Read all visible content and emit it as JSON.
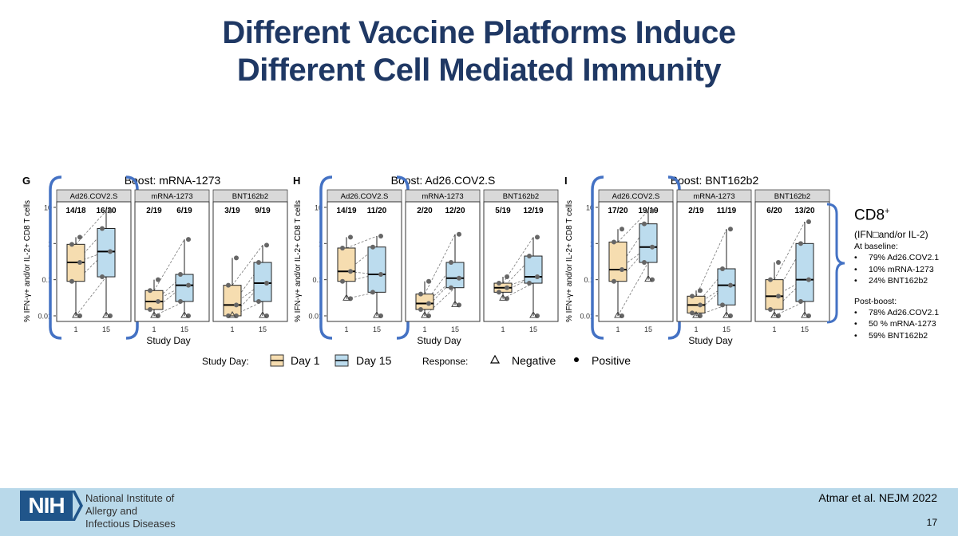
{
  "slide": {
    "title_line1": "Different Vaccine Platforms Induce",
    "title_line2": "Different Cell Mediated Immunity",
    "page_number": "17",
    "citation": "Atmar et al.  NEJM 2022"
  },
  "branding": {
    "logo_text": "NIH",
    "org_line1": "National Institute of",
    "org_line2": "Allergy and",
    "org_line3": "Infectious Diseases"
  },
  "colors": {
    "title": "#1f3864",
    "bracket": "#4472c4",
    "day1_fill": "#f6ddb0",
    "day15_fill": "#bcdcee",
    "facet_strip": "#d9d9d9",
    "point": "#666666",
    "footer_bg": "#b9d9ea",
    "logo_bg": "#20558a"
  },
  "sidebar": {
    "cd8_label": "CD8",
    "cd8_sup": "+",
    "subtitle": "(IFN□and/or IL-2)",
    "baseline_header": "At baseline:",
    "baseline_items": [
      "79% Ad26.COV2.1",
      "10% mRNA-1273",
      "24% BNT162b2"
    ],
    "postboost_header": "Post-boost:",
    "postboost_items": [
      "78% Ad26.COV2.1",
      "50 % mRNA-1273",
      "59% BNT162b2"
    ]
  },
  "chart_data": [
    {
      "type": "box",
      "panel_letter": "G",
      "title": "Boost: mRNA-1273",
      "ylabel": "% IFN-γ+ and/or IL-2+ CD8 T cells",
      "xlabel": "Study Day",
      "yscale": "log",
      "ylim": [
        0.007,
        15
      ],
      "yticks": [
        {
          "v": 10,
          "label": "10"
        },
        {
          "v": 1,
          "label": "1"
        },
        {
          "v": 0.1,
          "label": "0.1"
        },
        {
          "v": 0.01,
          "label": "0.01"
        }
      ],
      "xticks": [
        "1",
        "15"
      ],
      "facets": [
        {
          "strip": "Ad26.COV2.S",
          "counts": [
            "14/18",
            "16/20"
          ],
          "highlight": true,
          "boxes": [
            {
              "q1": 0.09,
              "med": 0.3,
              "q3": 0.95,
              "lo": 0.01,
              "hi": 1.5
            },
            {
              "q1": 0.12,
              "med": 0.6,
              "q3": 2.6,
              "lo": 0.01,
              "hi": 8
            }
          ]
        },
        {
          "strip": "mRNA-1273",
          "counts": [
            "2/19",
            "6/19"
          ],
          "highlight": false,
          "boxes": [
            {
              "q1": 0.015,
              "med": 0.025,
              "q3": 0.05,
              "lo": 0.01,
              "hi": 0.1
            },
            {
              "q1": 0.025,
              "med": 0.07,
              "q3": 0.14,
              "lo": 0.01,
              "hi": 1.3
            }
          ]
        },
        {
          "strip": "BNT162b2",
          "counts": [
            "3/19",
            "9/19"
          ],
          "highlight": false,
          "boxes": [
            {
              "q1": 0.01,
              "med": 0.02,
              "q3": 0.07,
              "lo": 0.01,
              "hi": 0.4
            },
            {
              "q1": 0.025,
              "med": 0.08,
              "q3": 0.3,
              "lo": 0.01,
              "hi": 0.9
            }
          ]
        }
      ]
    },
    {
      "type": "box",
      "panel_letter": "H",
      "title": "Boost: Ad26.COV2.S",
      "ylabel": "% IFN-γ+ and/or IL-2+ CD8 T cells",
      "xlabel": "Study Day",
      "yscale": "log",
      "ylim": [
        0.007,
        15
      ],
      "yticks": [
        {
          "v": 10,
          "label": "10"
        },
        {
          "v": 1,
          "label": "1"
        },
        {
          "v": 0.1,
          "label": "0.1"
        },
        {
          "v": 0.01,
          "label": "0.01"
        }
      ],
      "xticks": [
        "1",
        "15"
      ],
      "facets": [
        {
          "strip": "Ad26.COV2.S",
          "counts": [
            "14/19",
            "11/20"
          ],
          "highlight": true,
          "boxes": [
            {
              "q1": 0.09,
              "med": 0.17,
              "q3": 0.75,
              "lo": 0.03,
              "hi": 1.5
            },
            {
              "q1": 0.045,
              "med": 0.14,
              "q3": 0.8,
              "lo": 0.01,
              "hi": 1.6
            }
          ]
        },
        {
          "strip": "mRNA-1273",
          "counts": [
            "2/20",
            "12/20"
          ],
          "highlight": false,
          "boxes": [
            {
              "q1": 0.015,
              "med": 0.022,
              "q3": 0.04,
              "lo": 0.01,
              "hi": 0.09
            },
            {
              "q1": 0.06,
              "med": 0.11,
              "q3": 0.3,
              "lo": 0.02,
              "hi": 1.8
            }
          ]
        },
        {
          "strip": "BNT162b2",
          "counts": [
            "5/19",
            "12/19"
          ],
          "highlight": false,
          "boxes": [
            {
              "q1": 0.045,
              "med": 0.06,
              "q3": 0.08,
              "lo": 0.03,
              "hi": 0.12
            },
            {
              "q1": 0.08,
              "med": 0.12,
              "q3": 0.45,
              "lo": 0.01,
              "hi": 1.5
            }
          ]
        }
      ]
    },
    {
      "type": "box",
      "panel_letter": "I",
      "title": "Boost: BNT162b2",
      "ylabel": "% IFN-γ+ and/or IL-2+ CD8 T cells",
      "xlabel": "Study Day",
      "yscale": "log",
      "ylim": [
        0.007,
        15
      ],
      "yticks": [
        {
          "v": 10,
          "label": "10"
        },
        {
          "v": 1,
          "label": "1"
        },
        {
          "v": 0.1,
          "label": "0.1"
        },
        {
          "v": 0.01,
          "label": "0.01"
        }
      ],
      "xticks": [
        "1",
        "15"
      ],
      "facets": [
        {
          "strip": "Ad26.COV2.S",
          "counts": [
            "17/20",
            "19/19"
          ],
          "highlight": true,
          "boxes": [
            {
              "q1": 0.09,
              "med": 0.19,
              "q3": 1.1,
              "lo": 0.01,
              "hi": 2.5
            },
            {
              "q1": 0.3,
              "med": 0.8,
              "q3": 3.5,
              "lo": 0.1,
              "hi": 8
            }
          ]
        },
        {
          "strip": "mRNA-1273",
          "counts": [
            "2/19",
            "11/19"
          ],
          "highlight": false,
          "boxes": [
            {
              "q1": 0.012,
              "med": 0.02,
              "q3": 0.035,
              "lo": 0.01,
              "hi": 0.05
            },
            {
              "q1": 0.02,
              "med": 0.07,
              "q3": 0.2,
              "lo": 0.01,
              "hi": 2.5
            }
          ]
        },
        {
          "strip": "BNT162b2",
          "counts": [
            "6/20",
            "13/20"
          ],
          "highlight": false,
          "boxes": [
            {
              "q1": 0.015,
              "med": 0.035,
              "q3": 0.1,
              "lo": 0.01,
              "hi": 0.3
            },
            {
              "q1": 0.025,
              "med": 0.1,
              "q3": 1.0,
              "lo": 0.01,
              "hi": 4
            }
          ]
        }
      ]
    }
  ],
  "legend": {
    "study_day_title": "Study Day:",
    "day1_label": "Day 1",
    "day15_label": "Day 15",
    "response_title": "Response:",
    "negative_label": "Negative",
    "positive_label": "Positive"
  }
}
